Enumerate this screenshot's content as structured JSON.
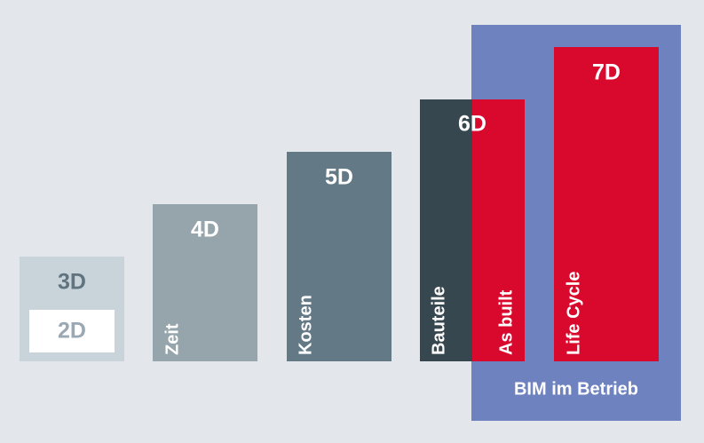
{
  "blocks": [
    {
      "label": "3D",
      "inner": "2D"
    },
    {
      "label": "4D",
      "caption": "Zeit"
    },
    {
      "label": "5D",
      "caption": "Kosten"
    },
    {
      "label": "6D",
      "captions": [
        "Bauteile",
        "As built"
      ]
    },
    {
      "label": "7D",
      "caption": "Life Cycle"
    }
  ],
  "group": {
    "label": "BIM im Betrieb"
  }
}
